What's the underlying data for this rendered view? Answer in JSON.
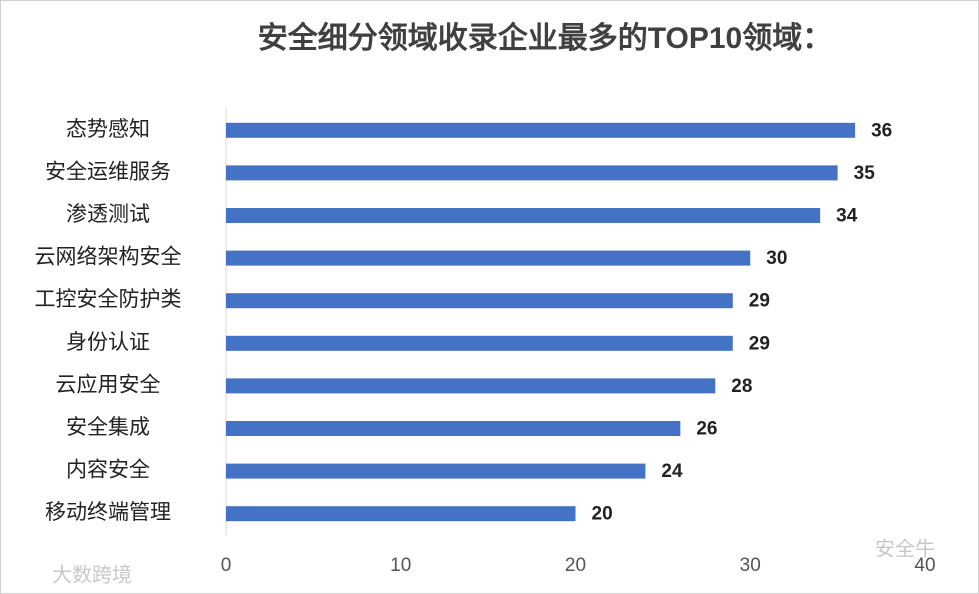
{
  "chart_data": {
    "type": "barh",
    "title": "安全细分领域收录企业最多的TOP10领域：",
    "categories": [
      "态势感知",
      "安全运维服务",
      "渗透测试",
      "云网络架构安全",
      "工控安全防护类",
      "身份认证",
      "云应用安全",
      "安全集成",
      "内容安全",
      "移动终端管理"
    ],
    "values": [
      36,
      35,
      34,
      30,
      29,
      29,
      28,
      26,
      24,
      20
    ],
    "color": "#4472c4",
    "xlim": [
      0,
      40
    ],
    "xticks": [
      0,
      10,
      20,
      30,
      40
    ],
    "grid": false,
    "watermarks": [
      "安全牛",
      "大数跨境"
    ]
  }
}
